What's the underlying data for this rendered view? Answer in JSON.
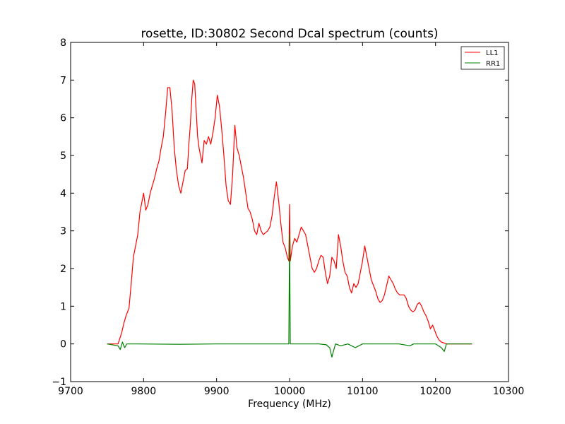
{
  "chart_data": {
    "type": "line",
    "title": "rosette, ID:30802 Second Dcal spectrum (counts)",
    "xlabel": "Frequency (MHz)",
    "ylabel": "",
    "xlim": [
      9700,
      10300
    ],
    "ylim": [
      -1,
      8
    ],
    "xticks": [
      9700,
      9800,
      9900,
      10000,
      10100,
      10200,
      10300
    ],
    "yticks": [
      -1,
      0,
      1,
      2,
      3,
      4,
      5,
      6,
      7,
      8
    ],
    "xtick_labels": [
      "9700",
      "9800",
      "9900",
      "10000",
      "10100",
      "10200",
      "10300"
    ],
    "ytick_labels": [
      "−1",
      "0",
      "1",
      "2",
      "3",
      "4",
      "5",
      "6",
      "7",
      "8"
    ],
    "grid": false,
    "legend": {
      "placement": "top-right",
      "entries": [
        "LL1",
        "RR1"
      ]
    },
    "series": [
      {
        "name": "LL1",
        "color": "#ff0000",
        "points": [
          [
            9750,
            0.0
          ],
          [
            9758,
            0.0
          ],
          [
            9765,
            0.0
          ],
          [
            9770,
            0.3
          ],
          [
            9773,
            0.55
          ],
          [
            9776,
            0.75
          ],
          [
            9780,
            0.95
          ],
          [
            9783,
            1.6
          ],
          [
            9786,
            2.3
          ],
          [
            9789,
            2.6
          ],
          [
            9792,
            2.9
          ],
          [
            9795,
            3.5
          ],
          [
            9798,
            3.8
          ],
          [
            9800,
            4.0
          ],
          [
            9803,
            3.55
          ],
          [
            9806,
            3.7
          ],
          [
            9809,
            4.0
          ],
          [
            9812,
            4.2
          ],
          [
            9815,
            4.4
          ],
          [
            9818,
            4.65
          ],
          [
            9821,
            4.85
          ],
          [
            9824,
            5.2
          ],
          [
            9827,
            5.5
          ],
          [
            9830,
            6.1
          ],
          [
            9833,
            6.8
          ],
          [
            9836,
            6.8
          ],
          [
            9839,
            6.2
          ],
          [
            9842,
            5.2
          ],
          [
            9845,
            4.6
          ],
          [
            9848,
            4.2
          ],
          [
            9851,
            4.0
          ],
          [
            9854,
            4.3
          ],
          [
            9857,
            4.6
          ],
          [
            9860,
            4.65
          ],
          [
            9862,
            5.3
          ],
          [
            9864,
            5.8
          ],
          [
            9866,
            6.5
          ],
          [
            9868,
            7.0
          ],
          [
            9870,
            6.9
          ],
          [
            9872,
            6.2
          ],
          [
            9874,
            5.5
          ],
          [
            9876,
            5.2
          ],
          [
            9878,
            5.0
          ],
          [
            9880,
            4.8
          ],
          [
            9883,
            5.4
          ],
          [
            9886,
            5.3
          ],
          [
            9889,
            5.5
          ],
          [
            9892,
            5.3
          ],
          [
            9895,
            5.6
          ],
          [
            9898,
            6.0
          ],
          [
            9901,
            6.6
          ],
          [
            9904,
            6.3
          ],
          [
            9907,
            5.7
          ],
          [
            9910,
            5.0
          ],
          [
            9913,
            4.2
          ],
          [
            9916,
            3.8
          ],
          [
            9919,
            3.7
          ],
          [
            9922,
            4.5
          ],
          [
            9925,
            5.8
          ],
          [
            9928,
            5.2
          ],
          [
            9931,
            5.0
          ],
          [
            9934,
            4.7
          ],
          [
            9937,
            4.4
          ],
          [
            9940,
            4.0
          ],
          [
            9943,
            3.6
          ],
          [
            9946,
            3.5
          ],
          [
            9949,
            3.3
          ],
          [
            9952,
            3.0
          ],
          [
            9955,
            2.9
          ],
          [
            9958,
            3.2
          ],
          [
            9961,
            3.0
          ],
          [
            9964,
            2.9
          ],
          [
            9967,
            2.95
          ],
          [
            9970,
            3.0
          ],
          [
            9973,
            3.1
          ],
          [
            9976,
            3.4
          ],
          [
            9979,
            3.9
          ],
          [
            9982,
            4.3
          ],
          [
            9985,
            3.8
          ],
          [
            9988,
            3.2
          ],
          [
            9991,
            2.7
          ],
          [
            9994,
            2.55
          ],
          [
            9997,
            2.3
          ],
          [
            9999,
            2.2
          ],
          [
            10000,
            3.7
          ],
          [
            10001,
            2.2
          ],
          [
            10004,
            2.6
          ],
          [
            10007,
            2.8
          ],
          [
            10010,
            2.7
          ],
          [
            10013,
            2.9
          ],
          [
            10016,
            3.1
          ],
          [
            10019,
            3.0
          ],
          [
            10022,
            2.9
          ],
          [
            10025,
            2.6
          ],
          [
            10028,
            2.3
          ],
          [
            10031,
            2.0
          ],
          [
            10034,
            1.9
          ],
          [
            10037,
            2.0
          ],
          [
            10040,
            2.2
          ],
          [
            10043,
            2.35
          ],
          [
            10046,
            2.3
          ],
          [
            10049,
            1.9
          ],
          [
            10052,
            1.6
          ],
          [
            10055,
            1.8
          ],
          [
            10058,
            2.3
          ],
          [
            10061,
            2.2
          ],
          [
            10064,
            2.0
          ],
          [
            10067,
            2.9
          ],
          [
            10070,
            2.6
          ],
          [
            10073,
            2.2
          ],
          [
            10076,
            1.9
          ],
          [
            10079,
            1.8
          ],
          [
            10082,
            1.5
          ],
          [
            10085,
            1.35
          ],
          [
            10088,
            1.6
          ],
          [
            10091,
            1.5
          ],
          [
            10094,
            1.6
          ],
          [
            10097,
            1.9
          ],
          [
            10100,
            2.2
          ],
          [
            10103,
            2.6
          ],
          [
            10106,
            2.3
          ],
          [
            10109,
            2.0
          ],
          [
            10112,
            1.7
          ],
          [
            10115,
            1.55
          ],
          [
            10118,
            1.4
          ],
          [
            10121,
            1.2
          ],
          [
            10124,
            1.1
          ],
          [
            10127,
            1.15
          ],
          [
            10130,
            1.3
          ],
          [
            10133,
            1.55
          ],
          [
            10136,
            1.8
          ],
          [
            10139,
            1.7
          ],
          [
            10142,
            1.6
          ],
          [
            10145,
            1.45
          ],
          [
            10148,
            1.35
          ],
          [
            10151,
            1.3
          ],
          [
            10154,
            1.3
          ],
          [
            10157,
            1.3
          ],
          [
            10160,
            1.2
          ],
          [
            10163,
            1.0
          ],
          [
            10166,
            0.9
          ],
          [
            10169,
            0.85
          ],
          [
            10172,
            0.9
          ],
          [
            10175,
            1.05
          ],
          [
            10178,
            1.1
          ],
          [
            10181,
            1.0
          ],
          [
            10184,
            0.85
          ],
          [
            10187,
            0.75
          ],
          [
            10190,
            0.6
          ],
          [
            10193,
            0.4
          ],
          [
            10196,
            0.5
          ],
          [
            10199,
            0.35
          ],
          [
            10202,
            0.2
          ],
          [
            10205,
            0.1
          ],
          [
            10208,
            0.05
          ],
          [
            10215,
            0.0
          ],
          [
            10225,
            0.0
          ],
          [
            10250,
            0.0
          ]
        ]
      },
      {
        "name": "RR1",
        "color": "#008000",
        "points": [
          [
            9750,
            0.0
          ],
          [
            9765,
            -0.05
          ],
          [
            9768,
            -0.15
          ],
          [
            9771,
            0.05
          ],
          [
            9774,
            -0.1
          ],
          [
            9777,
            0.0
          ],
          [
            9790,
            0.0
          ],
          [
            9850,
            -0.01
          ],
          [
            9900,
            0.0
          ],
          [
            9950,
            0.0
          ],
          [
            9990,
            0.0
          ],
          [
            9999,
            0.0
          ],
          [
            10000,
            2.9
          ],
          [
            10001,
            0.0
          ],
          [
            10040,
            0.0
          ],
          [
            10050,
            -0.02
          ],
          [
            10055,
            -0.1
          ],
          [
            10058,
            -0.35
          ],
          [
            10060,
            -0.2
          ],
          [
            10063,
            0.0
          ],
          [
            10070,
            -0.05
          ],
          [
            10080,
            0.0
          ],
          [
            10090,
            -0.1
          ],
          [
            10095,
            -0.05
          ],
          [
            10100,
            0.0
          ],
          [
            10150,
            0.0
          ],
          [
            10165,
            -0.05
          ],
          [
            10170,
            0.0
          ],
          [
            10200,
            0.0
          ],
          [
            10208,
            -0.1
          ],
          [
            10212,
            -0.2
          ],
          [
            10215,
            0.0
          ],
          [
            10230,
            0.0
          ],
          [
            10250,
            0.0
          ]
        ]
      }
    ]
  }
}
